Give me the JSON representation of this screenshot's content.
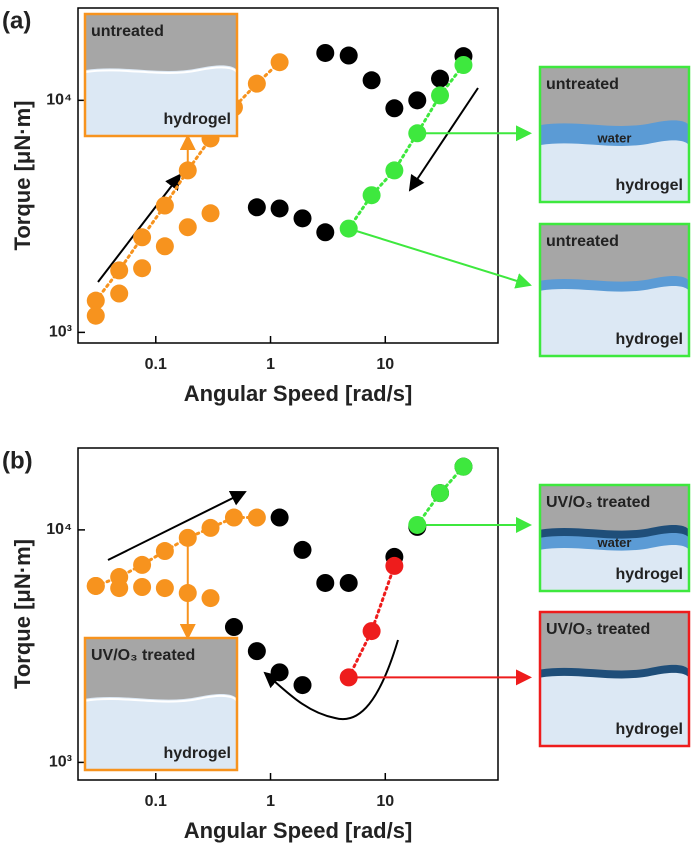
{
  "chart_data": [
    {
      "type": "scatter",
      "panel_label": "(a)",
      "xlabel": "Angular Speed [rad/s]",
      "ylabel": "Torque [μN·m]",
      "log_x": true,
      "log_y": true,
      "xlim": [
        0.021,
        96
      ],
      "xticks": [
        0.1,
        1,
        10
      ],
      "ylim": [
        900,
        25000
      ],
      "yticks": [
        {
          "value": 1000,
          "label": "10³"
        },
        {
          "value": 10000,
          "label": "10⁴"
        }
      ],
      "series": [
        {
          "color": "#000000",
          "x": [
            3.0,
            4.8,
            7.6,
            12,
            19,
            30,
            48
          ],
          "values": [
            16000,
            15600,
            12200,
            9240,
            10000,
            12400,
            15500
          ]
        },
        {
          "color": "#000000",
          "x": [
            0.76,
            1.2,
            1.9,
            3.0
          ],
          "values": [
            3460,
            3420,
            3100,
            2700
          ]
        },
        {
          "color": "#f7931e",
          "x": [
            0.03,
            0.048,
            0.076,
            0.12,
            0.19,
            0.3,
            0.48,
            0.76,
            1.2
          ],
          "values": [
            1370,
            1850,
            2570,
            3520,
            4990,
            6850,
            9330,
            11800,
            14600
          ],
          "dotted": true
        },
        {
          "color": "#f7931e",
          "x": [
            0.03,
            0.048,
            0.076,
            0.12,
            0.19,
            0.3
          ],
          "values": [
            1180,
            1470,
            1890,
            2350,
            2840,
            3260
          ]
        },
        {
          "color": "#3ee83e",
          "x": [
            4.8,
            7.6,
            12,
            19,
            30,
            48
          ],
          "values": [
            2800,
            3900,
            4990,
            7210,
            10500,
            14200
          ],
          "dotted": true
        }
      ],
      "insets": [
        {
          "title": "untreated",
          "label": "hydrogel",
          "color": "#f7931e"
        },
        {
          "title": "untreated",
          "water": "water",
          "label": "hydrogel",
          "color": "#3ee83e"
        },
        {
          "title": "untreated",
          "label": "hydrogel",
          "color": "#3ee83e"
        }
      ]
    },
    {
      "type": "scatter",
      "panel_label": "(b)",
      "xlabel": "Angular Speed [rad/s]",
      "ylabel": "Torque [μN·m]",
      "log_x": true,
      "log_y": true,
      "xlim": [
        0.021,
        96
      ],
      "xticks": [
        0.1,
        1,
        10
      ],
      "ylim": [
        840,
        22500
      ],
      "yticks": [
        {
          "value": 1000,
          "label": "10³"
        },
        {
          "value": 10000,
          "label": "10⁴"
        }
      ],
      "series": [
        {
          "color": "#000000",
          "x": [
            1.2,
            1.9,
            3.0,
            4.8,
            12,
            19,
            30,
            48
          ],
          "values": [
            11300,
            8200,
            5910,
            5910,
            7650,
            10300,
            14400,
            18700
          ]
        },
        {
          "color": "#000000",
          "x": [
            0.48,
            0.76,
            1.2,
            1.9
          ],
          "values": [
            3820,
            3010,
            2440,
            2150
          ]
        },
        {
          "color": "#f7931e",
          "x": [
            0.03,
            0.048,
            0.076,
            0.12,
            0.19,
            0.3,
            0.48,
            0.76
          ],
          "values": [
            5740,
            6270,
            7070,
            8110,
            9240,
            10200,
            11300,
            11300
          ],
          "dotted": true
        },
        {
          "color": "#f7931e",
          "x": [
            0.03,
            0.048,
            0.076,
            0.12,
            0.19,
            0.3
          ],
          "values": [
            5740,
            5620,
            5680,
            5620,
            5350,
            5090
          ]
        },
        {
          "color": "#3ee83e",
          "x": [
            19,
            30,
            48
          ],
          "values": [
            10500,
            14400,
            18700
          ],
          "dotted": true
        },
        {
          "color": "#ee1c1c",
          "x": [
            4.8,
            7.6,
            12
          ],
          "values": [
            2320,
            3670,
            7000
          ],
          "dotted": true
        }
      ],
      "insets": [
        {
          "title": "UV/O₃ treated",
          "water": "water",
          "label": "hydrogel",
          "color": "#3ee83e"
        },
        {
          "title": "UV/O₃ treated",
          "label": "hydrogel",
          "color": "#ee1c1c"
        },
        {
          "title": "UV/O₃ treated",
          "label": "hydrogel",
          "color": "#f7931e"
        }
      ]
    }
  ]
}
